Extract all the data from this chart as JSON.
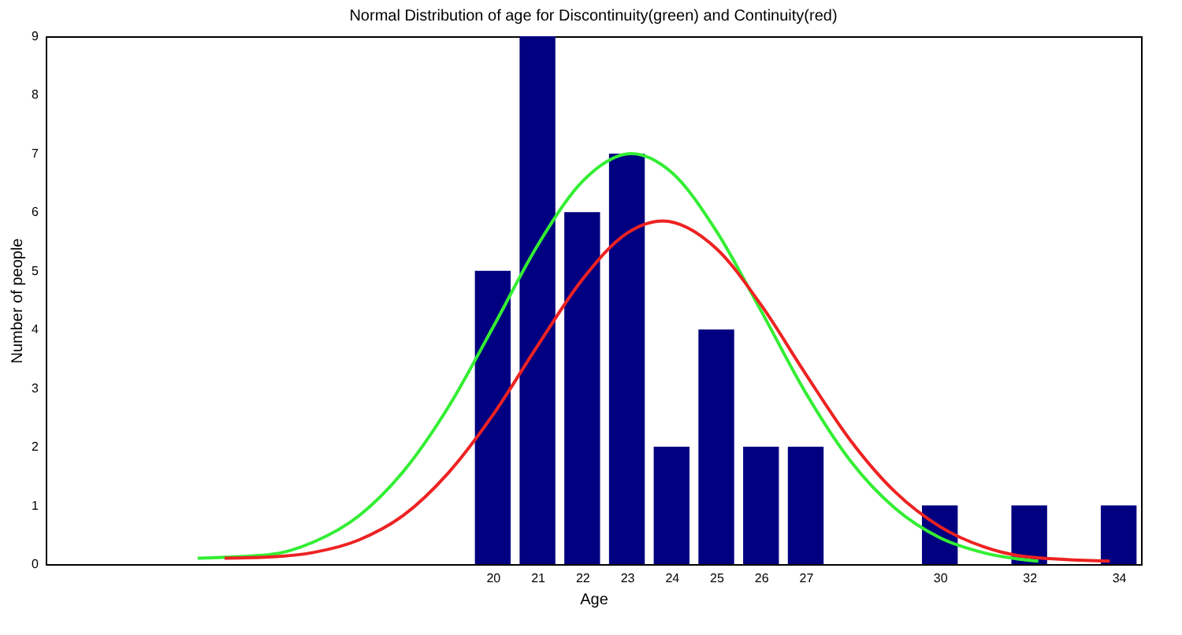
{
  "chart_data": {
    "type": "bar",
    "title": "Normal Distribution of age for Discontinuity(green) and Continuity(red)",
    "xlabel": "Age",
    "ylabel": "Number of people",
    "xlim": [
      10,
      34.5
    ],
    "xticks": [
      20,
      21,
      22,
      23,
      24,
      25,
      26,
      27,
      30,
      32,
      34
    ],
    "ylim": [
      0,
      9
    ],
    "yticks": [
      0,
      1,
      2,
      3,
      4,
      5,
      6,
      7,
      8,
      9
    ],
    "grid": false,
    "series": [
      {
        "color": "#000080",
        "x": [
          20,
          21,
          22,
          23,
          24,
          25,
          26,
          27,
          30,
          32,
          34
        ],
        "values": [
          5,
          9,
          6,
          7,
          2,
          4,
          2,
          2,
          1,
          1,
          1
        ]
      },
      {
        "type": "line",
        "color": "#33ee33",
        "x": [
          13.4,
          15,
          16,
          17,
          18,
          19,
          20,
          21,
          22,
          23.1,
          24,
          25,
          26,
          27,
          28,
          29,
          30,
          31,
          32.2
        ],
        "values": [
          0.1,
          0.16,
          0.38,
          0.82,
          1.58,
          2.67,
          4.03,
          5.43,
          6.52,
          7,
          6.68,
          5.68,
          4.32,
          2.92,
          1.76,
          0.95,
          0.45,
          0.19,
          0.05
        ]
      },
      {
        "type": "line",
        "color": "#ee2222",
        "x": [
          14,
          15,
          16,
          17,
          18,
          19,
          20,
          21,
          22,
          23,
          23.8,
          25,
          26,
          27,
          28,
          29,
          30,
          31,
          32,
          33.8
        ],
        "values": [
          0.1,
          0.12,
          0.2,
          0.41,
          0.83,
          1.55,
          2.54,
          3.72,
          4.85,
          5.64,
          5.85,
          5.38,
          4.42,
          3.24,
          2.11,
          1.23,
          0.64,
          0.29,
          0.12,
          0.05
        ]
      }
    ]
  }
}
